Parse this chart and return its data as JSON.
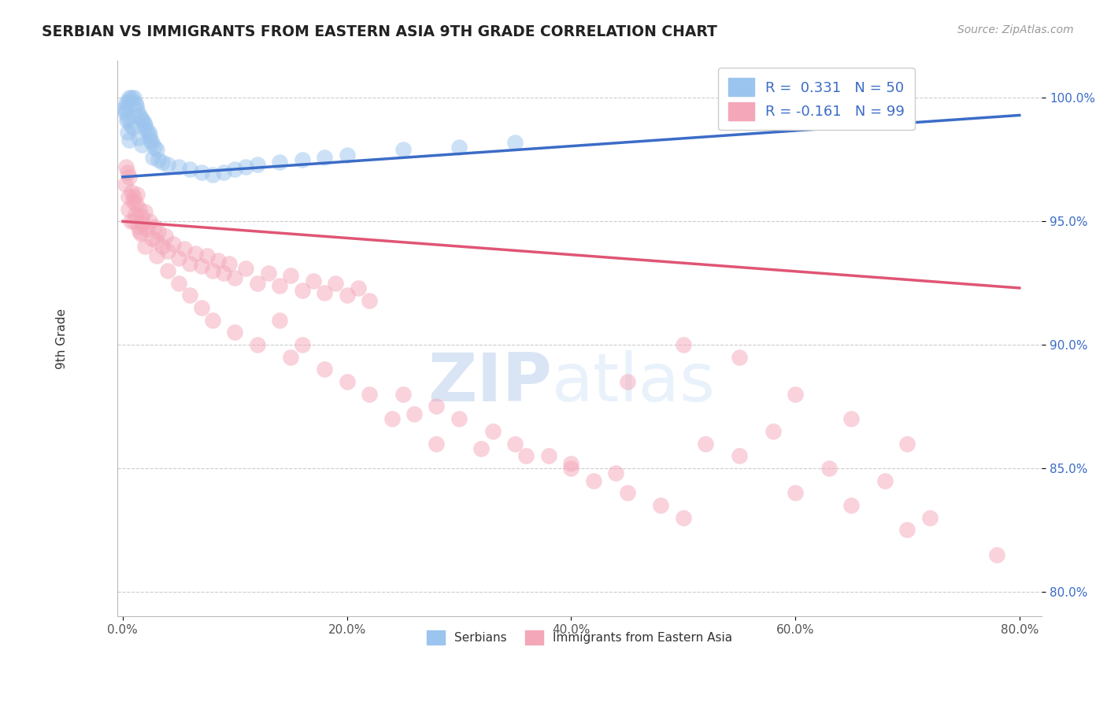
{
  "title": "SERBIAN VS IMMIGRANTS FROM EASTERN ASIA 9TH GRADE CORRELATION CHART",
  "source": "Source: ZipAtlas.com",
  "xlabel_ticks": [
    "0.0%",
    "20.0%",
    "40.0%",
    "60.0%",
    "80.0%"
  ],
  "xlabel_vals": [
    0.0,
    20.0,
    40.0,
    60.0,
    80.0
  ],
  "ylabel": "9th Grade",
  "ylim": [
    79.0,
    101.5
  ],
  "xlim": [
    -0.5,
    82.0
  ],
  "ytick_vals": [
    80.0,
    85.0,
    90.0,
    95.0,
    100.0
  ],
  "ytick_labels": [
    "80.0%",
    "85.0%",
    "90.0%",
    "95.0%",
    "100.0%"
  ],
  "blue_color": "#9BC4EE",
  "pink_color": "#F4A7B9",
  "blue_line_color": "#3B6CC7",
  "pink_line_color": "#E05575",
  "legend_label1": "Serbians",
  "legend_label2": "Immigrants from Eastern Asia",
  "watermark_zip": "ZIP",
  "watermark_atlas": "atlas",
  "blue_line_x0": 0,
  "blue_line_y0": 96.8,
  "blue_line_x1": 80,
  "blue_line_y1": 99.3,
  "pink_line_x0": 0,
  "pink_line_y0": 95.0,
  "pink_line_x1": 80,
  "pink_line_y1": 92.3,
  "blue_dots": [
    [
      0.3,
      99.8
    ],
    [
      0.5,
      99.9
    ],
    [
      0.6,
      100.0
    ],
    [
      0.8,
      100.0
    ],
    [
      1.0,
      100.0
    ],
    [
      1.1,
      99.8
    ],
    [
      1.2,
      99.7
    ],
    [
      1.3,
      99.5
    ],
    [
      1.5,
      99.3
    ],
    [
      1.6,
      99.2
    ],
    [
      1.8,
      99.1
    ],
    [
      1.9,
      99.0
    ],
    [
      2.0,
      98.9
    ],
    [
      2.1,
      98.7
    ],
    [
      2.3,
      98.6
    ],
    [
      2.4,
      98.5
    ],
    [
      2.5,
      98.3
    ],
    [
      2.6,
      98.2
    ],
    [
      2.8,
      98.0
    ],
    [
      3.0,
      97.9
    ],
    [
      0.4,
      99.2
    ],
    [
      0.7,
      98.9
    ],
    [
      1.4,
      98.4
    ],
    [
      2.7,
      97.6
    ],
    [
      3.5,
      97.4
    ],
    [
      4.0,
      97.3
    ],
    [
      0.2,
      99.5
    ],
    [
      0.9,
      98.8
    ],
    [
      1.7,
      98.1
    ],
    [
      3.2,
      97.5
    ],
    [
      5.0,
      97.2
    ],
    [
      6.0,
      97.1
    ],
    [
      7.0,
      97.0
    ],
    [
      8.0,
      96.9
    ],
    [
      9.0,
      97.0
    ],
    [
      10.0,
      97.1
    ],
    [
      11.0,
      97.2
    ],
    [
      12.0,
      97.3
    ],
    [
      14.0,
      97.4
    ],
    [
      16.0,
      97.5
    ],
    [
      18.0,
      97.6
    ],
    [
      20.0,
      97.7
    ],
    [
      25.0,
      97.9
    ],
    [
      30.0,
      98.0
    ],
    [
      35.0,
      98.2
    ],
    [
      0.15,
      99.6
    ],
    [
      0.25,
      99.4
    ],
    [
      0.35,
      99.1
    ],
    [
      0.45,
      98.6
    ],
    [
      0.55,
      98.3
    ]
  ],
  "pink_dots": [
    [
      0.2,
      96.5
    ],
    [
      0.4,
      97.0
    ],
    [
      0.5,
      95.5
    ],
    [
      0.6,
      96.8
    ],
    [
      0.7,
      95.0
    ],
    [
      0.8,
      96.2
    ],
    [
      0.9,
      95.8
    ],
    [
      1.0,
      96.0
    ],
    [
      1.1,
      95.3
    ],
    [
      1.2,
      95.7
    ],
    [
      1.3,
      96.1
    ],
    [
      1.4,
      94.8
    ],
    [
      1.5,
      95.5
    ],
    [
      1.6,
      94.5
    ],
    [
      1.7,
      95.2
    ],
    [
      1.8,
      94.9
    ],
    [
      2.0,
      95.4
    ],
    [
      2.2,
      94.7
    ],
    [
      2.4,
      95.0
    ],
    [
      2.6,
      94.3
    ],
    [
      2.8,
      94.8
    ],
    [
      3.0,
      94.2
    ],
    [
      3.2,
      94.6
    ],
    [
      3.5,
      94.0
    ],
    [
      3.8,
      94.4
    ],
    [
      4.0,
      93.8
    ],
    [
      4.5,
      94.1
    ],
    [
      5.0,
      93.5
    ],
    [
      5.5,
      93.9
    ],
    [
      6.0,
      93.3
    ],
    [
      6.5,
      93.7
    ],
    [
      7.0,
      93.2
    ],
    [
      7.5,
      93.6
    ],
    [
      8.0,
      93.0
    ],
    [
      8.5,
      93.4
    ],
    [
      9.0,
      92.9
    ],
    [
      9.5,
      93.3
    ],
    [
      10.0,
      92.7
    ],
    [
      11.0,
      93.1
    ],
    [
      12.0,
      92.5
    ],
    [
      13.0,
      92.9
    ],
    [
      14.0,
      92.4
    ],
    [
      15.0,
      92.8
    ],
    [
      16.0,
      92.2
    ],
    [
      17.0,
      92.6
    ],
    [
      18.0,
      92.1
    ],
    [
      19.0,
      92.5
    ],
    [
      20.0,
      92.0
    ],
    [
      21.0,
      92.3
    ],
    [
      22.0,
      91.8
    ],
    [
      0.3,
      97.2
    ],
    [
      0.5,
      96.0
    ],
    [
      1.0,
      95.0
    ],
    [
      1.5,
      94.6
    ],
    [
      2.0,
      94.0
    ],
    [
      3.0,
      93.6
    ],
    [
      4.0,
      93.0
    ],
    [
      5.0,
      92.5
    ],
    [
      6.0,
      92.0
    ],
    [
      7.0,
      91.5
    ],
    [
      8.0,
      91.0
    ],
    [
      10.0,
      90.5
    ],
    [
      12.0,
      90.0
    ],
    [
      15.0,
      89.5
    ],
    [
      18.0,
      89.0
    ],
    [
      20.0,
      88.5
    ],
    [
      25.0,
      88.0
    ],
    [
      28.0,
      87.5
    ],
    [
      30.0,
      87.0
    ],
    [
      33.0,
      86.5
    ],
    [
      35.0,
      86.0
    ],
    [
      38.0,
      85.5
    ],
    [
      40.0,
      85.0
    ],
    [
      42.0,
      84.5
    ],
    [
      45.0,
      84.0
    ],
    [
      48.0,
      83.5
    ],
    [
      50.0,
      83.0
    ],
    [
      52.0,
      86.0
    ],
    [
      55.0,
      85.5
    ],
    [
      58.0,
      86.5
    ],
    [
      60.0,
      84.0
    ],
    [
      63.0,
      85.0
    ],
    [
      65.0,
      83.5
    ],
    [
      68.0,
      84.5
    ],
    [
      70.0,
      82.5
    ],
    [
      28.0,
      86.0
    ],
    [
      32.0,
      85.8
    ],
    [
      36.0,
      85.5
    ],
    [
      40.0,
      85.2
    ],
    [
      44.0,
      84.8
    ],
    [
      24.0,
      87.0
    ],
    [
      26.0,
      87.2
    ],
    [
      22.0,
      88.0
    ],
    [
      16.0,
      90.0
    ],
    [
      14.0,
      91.0
    ],
    [
      78.0,
      81.5
    ],
    [
      45.0,
      88.5
    ],
    [
      50.0,
      90.0
    ],
    [
      55.0,
      89.5
    ],
    [
      60.0,
      88.0
    ],
    [
      65.0,
      87.0
    ],
    [
      70.0,
      86.0
    ],
    [
      72.0,
      83.0
    ]
  ]
}
